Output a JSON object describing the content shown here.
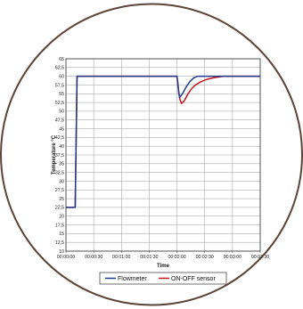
{
  "chart_data": {
    "type": "line",
    "title": "",
    "xlabel": "Time",
    "ylabel": "Temperature °C",
    "x_tick_labels": [
      "00:00:00",
      "00:00:30",
      "00:01:00",
      "00:01:30",
      "00:02:00",
      "00:02:30",
      "00:03:00",
      "00:03:30"
    ],
    "x_tick_seconds": [
      0,
      30,
      60,
      90,
      120,
      150,
      180,
      210
    ],
    "xlim": [
      0,
      210
    ],
    "y_tick_labels": [
      "10",
      "12,5",
      "15",
      "17,5",
      "20",
      "22,5",
      "25",
      "27,5",
      "30",
      "32,5",
      "35",
      "37,5",
      "40",
      "42,5",
      "45",
      "47,5",
      "50",
      "52,5",
      "55",
      "57,5",
      "60",
      "62,5",
      "65"
    ],
    "ylim": [
      10,
      65
    ],
    "ystep": 2.5,
    "grid": true,
    "legend_position": "bottom",
    "series": [
      {
        "name": "Flowmeter",
        "color": "#1f3a8a",
        "points": [
          [
            0,
            22.5
          ],
          [
            10,
            22.5
          ],
          [
            12,
            60
          ],
          [
            120,
            60
          ],
          [
            121,
            58
          ],
          [
            122,
            55
          ],
          [
            123,
            54
          ],
          [
            126,
            55
          ],
          [
            130,
            57
          ],
          [
            134,
            58.5
          ],
          [
            138,
            59.5
          ],
          [
            142,
            60
          ],
          [
            210,
            60
          ]
        ]
      },
      {
        "name": "ON-OFF sensor",
        "color": "#c0161c",
        "points": [
          [
            0,
            22.5
          ],
          [
            10,
            22.5
          ],
          [
            12,
            60
          ],
          [
            120,
            60
          ],
          [
            121,
            57.5
          ],
          [
            123,
            53.5
          ],
          [
            125,
            52.2
          ],
          [
            128,
            53
          ],
          [
            132,
            55
          ],
          [
            136,
            56.5
          ],
          [
            140,
            57.5
          ],
          [
            145,
            58.3
          ],
          [
            150,
            58.9
          ],
          [
            155,
            59.3
          ],
          [
            160,
            59.6
          ],
          [
            170,
            60
          ],
          [
            210,
            60
          ]
        ]
      }
    ]
  }
}
